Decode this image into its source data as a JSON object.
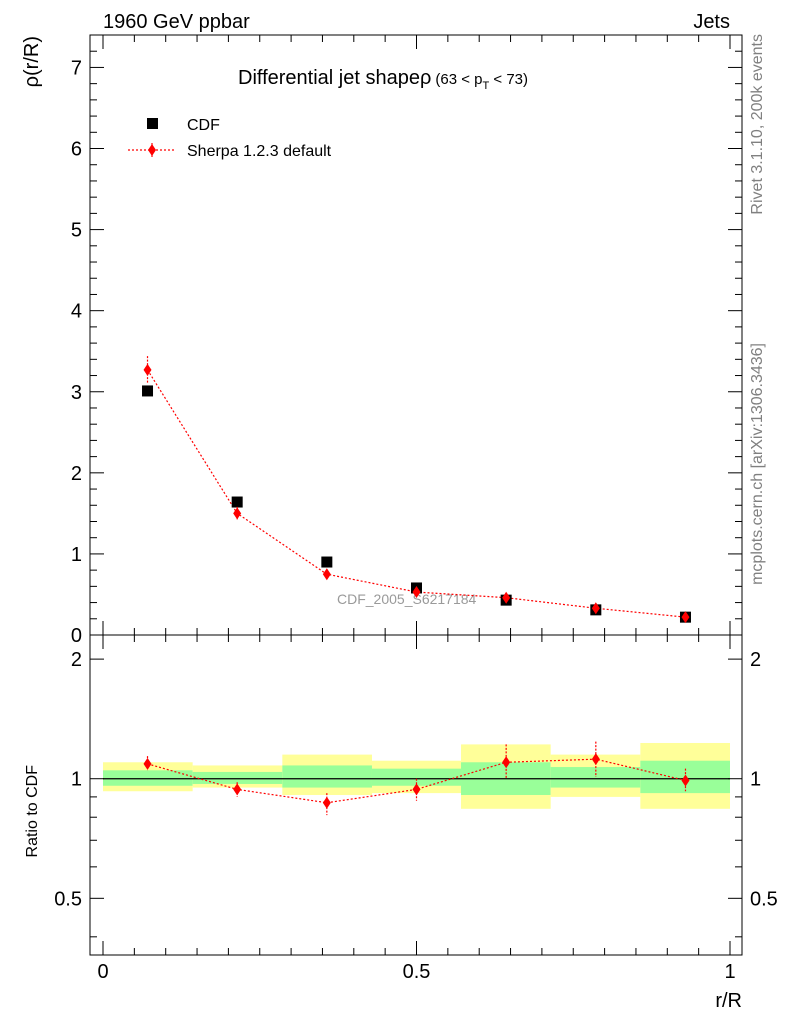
{
  "header": {
    "left_title": "1960 GeV ppbar",
    "right_title": "Jets"
  },
  "side_labels": {
    "rivet": "Rivet 3.1.10,  200k events",
    "mcplots": "mcplots.cern.ch [arXiv:1306.3436]"
  },
  "colors": {
    "data": "#000000",
    "mc": "#ff0000",
    "band_inner": "#99ff99",
    "band_outer": "#ffff99"
  },
  "chart_data": [
    {
      "type": "scatter",
      "title_main": "Differential jet shape",
      "title_rho": "ρ",
      "title_range": "(63 < p",
      "title_sub": "T",
      "title_range_end": " < 73)",
      "ylabel": "ρ(r/R)",
      "xlim": [
        0,
        1
      ],
      "ylim": [
        0,
        7.4
      ],
      "yticks": [
        0,
        1,
        2,
        3,
        4,
        5,
        6,
        7
      ],
      "ytick_labels": [
        "0",
        "1",
        "2",
        "3",
        "4",
        "5",
        "6",
        "7"
      ],
      "watermark": "CDF_2005_S6217184",
      "legend": {
        "position": "top-left",
        "entries": [
          "CDF",
          "Sherpa 1.2.3 default"
        ]
      },
      "x": [
        0.071,
        0.214,
        0.357,
        0.5,
        0.643,
        0.786,
        0.929
      ],
      "series": [
        {
          "name": "CDF",
          "marker": "square",
          "values": [
            3.01,
            1.64,
            0.9,
            0.58,
            0.43,
            0.31,
            0.22
          ]
        },
        {
          "name": "Sherpa 1.2.3 default",
          "marker": "diamond",
          "line": "dotted",
          "values": [
            3.27,
            1.5,
            0.75,
            0.53,
            0.46,
            0.33,
            0.22
          ],
          "errors": [
            0.17,
            0.08,
            0.06,
            0.04,
            0.04,
            0.04,
            0.03
          ]
        }
      ]
    },
    {
      "type": "scatter",
      "ylabel": "Ratio to CDF",
      "xlabel": "r/R",
      "xlim": [
        0,
        1
      ],
      "ylim": [
        0.36,
        2.3
      ],
      "yticks": [
        0.5,
        1,
        2
      ],
      "ytick_labels": [
        "0.5",
        "1",
        "2"
      ],
      "xticks": [
        0,
        0.5,
        1
      ],
      "xtick_labels": [
        "0",
        "0.5",
        "1"
      ],
      "reference_line": 1,
      "x_edges": [
        0,
        0.143,
        0.286,
        0.429,
        0.571,
        0.714,
        0.857,
        1.0
      ],
      "band_inner": [
        [
          0.96,
          1.05
        ],
        [
          0.97,
          1.04
        ],
        [
          0.95,
          1.08
        ],
        [
          0.96,
          1.06
        ],
        [
          0.91,
          1.1
        ],
        [
          0.95,
          1.07
        ],
        [
          0.92,
          1.11
        ]
      ],
      "band_outer": [
        [
          0.93,
          1.1
        ],
        [
          0.95,
          1.08
        ],
        [
          0.91,
          1.15
        ],
        [
          0.92,
          1.11
        ],
        [
          0.84,
          1.22
        ],
        [
          0.9,
          1.15
        ],
        [
          0.84,
          1.23
        ]
      ],
      "series": [
        {
          "name": "Sherpa 1.2.3 default",
          "values": [
            1.09,
            0.94,
            0.87,
            0.94,
            1.1,
            1.12,
            0.99
          ],
          "err_low": [
            0.04,
            0.04,
            0.06,
            0.06,
            0.1,
            0.11,
            0.06
          ],
          "err_high": [
            0.05,
            0.04,
            0.05,
            0.06,
            0.12,
            0.12,
            0.07
          ]
        }
      ]
    }
  ]
}
